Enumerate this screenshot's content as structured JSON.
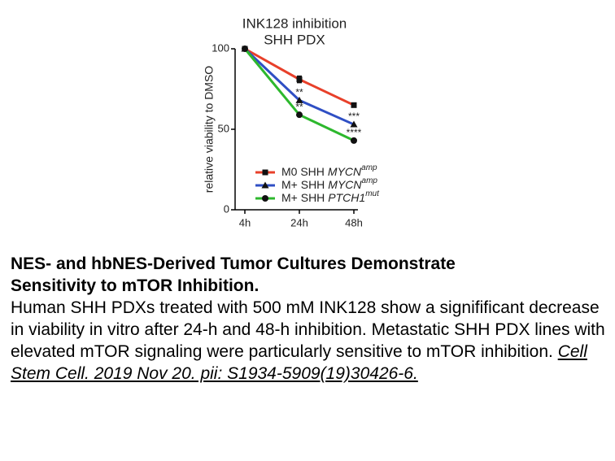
{
  "chart_data": {
    "type": "line",
    "title": [
      "INK128 inhibition",
      "SHH PDX"
    ],
    "y_label": "relative viability to DMSO",
    "categories": [
      "4h",
      "24h",
      "48h"
    ],
    "ylim": [
      0,
      100
    ],
    "yticks": [
      0,
      50,
      100
    ],
    "series": [
      {
        "name": "M0 SHH",
        "gene": "MYCN",
        "gene_sup": "amp",
        "color": "#e8402a",
        "marker": "square",
        "values": [
          100,
          81,
          65
        ],
        "errors": [
          null,
          2,
          null
        ]
      },
      {
        "name": "M+ SHH",
        "gene": "MYCN",
        "gene_sup": "amp",
        "color": "#2f4fc4",
        "marker": "triangle",
        "values": [
          100,
          68,
          53
        ]
      },
      {
        "name": "M+ SHH",
        "gene": "PTCH1",
        "gene_sup": "mut",
        "color": "#2db82d",
        "marker": "circle",
        "values": [
          100,
          59,
          43
        ]
      }
    ],
    "annotations": [
      {
        "text": "**",
        "series": 1,
        "index": 1
      },
      {
        "text": "**",
        "series": 2,
        "index": 1
      },
      {
        "text": "***",
        "series": 1,
        "index": 2
      },
      {
        "text": "****",
        "series": 2,
        "index": 2
      }
    ]
  },
  "caption": {
    "title": "NES- and hbNES-Derived Tumor Cultures Demonstrate Sensitivity to mTOR Inhibition.",
    "body": "Human SHH PDXs treated with 500 mM INK128 show a signifificant decrease in viability in vitro after 24-h and 48-h inhibition. Metastatic SHH PDX lines with elevated mTOR signaling were particularly sensitive to mTOR inhibition.",
    "citation": "Cell Stem Cell. 2019 Nov 20. pii: S1934-5909(19)30426-6."
  }
}
